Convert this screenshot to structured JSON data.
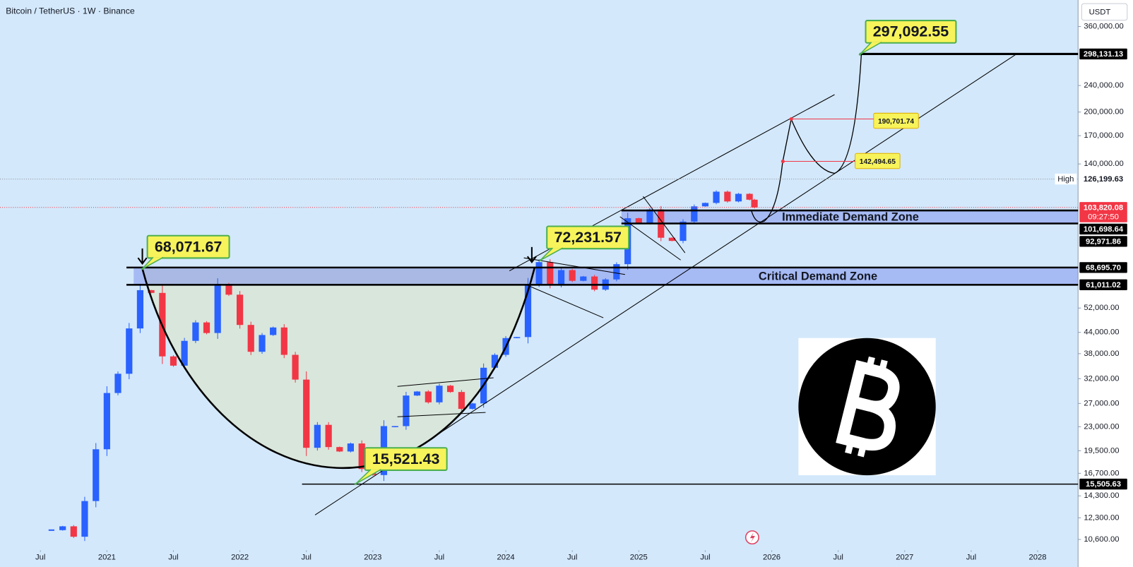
{
  "chart_data": {
    "type": "candlestick",
    "title": "Bitcoin / TetherUS · 1W · Binance",
    "currency": "USDT",
    "log": true,
    "grid": false,
    "xlim": [
      2020.196,
      2028.304
    ],
    "ylim": [
      9930,
      432000
    ],
    "xticks": [
      {
        "value": 2020.5,
        "label": "Jul"
      },
      2021,
      {
        "value": 2021.5,
        "label": "Jul"
      },
      2022,
      {
        "value": 2022.5,
        "label": "Jul"
      },
      2023,
      {
        "value": 2023.5,
        "label": "Jul"
      },
      2024,
      {
        "value": 2024.5,
        "label": "Jul"
      },
      2025,
      {
        "value": 2025.5,
        "label": "Jul"
      },
      2026,
      {
        "value": 2026.5,
        "label": "Jul"
      },
      2027,
      {
        "value": 2027.5,
        "label": "Jul"
      },
      2028
    ],
    "yticks": [
      {
        "value": 360000,
        "label": "360,000.00"
      },
      {
        "value": 240000,
        "label": "240,000.00"
      },
      {
        "value": 200000,
        "label": "200,000.00"
      },
      {
        "value": 170000,
        "label": "170,000.00"
      },
      {
        "value": 140000,
        "label": "140,000.00"
      },
      {
        "value": 52000,
        "label": "52,000.00"
      },
      {
        "value": 44000,
        "label": "44,000.00"
      },
      {
        "value": 38000,
        "label": "38,000.00"
      },
      {
        "value": 32000,
        "label": "32,000.00"
      },
      {
        "value": 27000,
        "label": "27,000.00"
      },
      {
        "value": 23000,
        "label": "23,000.00"
      },
      {
        "value": 19500,
        "label": "19,500.00"
      },
      {
        "value": 16700,
        "label": "16,700.00"
      },
      {
        "value": 14300,
        "label": "14,300.00"
      },
      {
        "value": 12300,
        "label": "12,300.00"
      },
      {
        "value": 10600,
        "label": "10,600.00"
      }
    ],
    "series": [
      {
        "name": "BTCUSDT",
        "up_color": "#2962ff",
        "down_color": "#f23645",
        "x": [
          2020.583,
          2020.667,
          2020.75,
          2020.833,
          2020.917,
          2021.0,
          2021.083,
          2021.167,
          2021.25,
          2021.333,
          2021.417,
          2021.5,
          2021.583,
          2021.667,
          2021.75,
          2021.833,
          2021.917,
          2022.0,
          2022.083,
          2022.167,
          2022.25,
          2022.333,
          2022.417,
          2022.5,
          2022.583,
          2022.667,
          2022.75,
          2022.833,
          2022.917,
          2023.0,
          2023.083,
          2023.167,
          2023.25,
          2023.333,
          2023.417,
          2023.5,
          2023.583,
          2023.667,
          2023.75,
          2023.833,
          2023.917,
          2024.0,
          2024.083,
          2024.167,
          2024.25,
          2024.333,
          2024.417,
          2024.5,
          2024.583,
          2024.667,
          2024.75,
          2024.833,
          2024.917,
          2025.0,
          2025.083,
          2025.167,
          2025.25,
          2025.333,
          2025.417,
          2025.5,
          2025.583,
          2025.667,
          2025.75,
          2025.833,
          2025.87
        ],
        "values": [
          11300,
          11600,
          10800,
          13800,
          19700,
          29000,
          33100,
          45200,
          58800,
          57700,
          37300,
          35000,
          41500,
          47100,
          43800,
          61300,
          57000,
          46300,
          38500,
          43200,
          45500,
          37700,
          31800,
          19900,
          23300,
          20000,
          19400,
          20500,
          17200,
          16500,
          23100,
          23100,
          28500,
          29300,
          27200,
          30500,
          29200,
          26000,
          27000,
          34500,
          37700,
          42300,
          42600,
          61200,
          71300,
          60700,
          67500,
          62700,
          64600,
          59000,
          63300,
          70300,
          96400,
          93400,
          102400,
          84300,
          82500,
          94200,
          104600,
          107100,
          115700,
          108200,
          114000,
          109500,
          103820.08
        ]
      }
    ],
    "levels": [
      {
        "value": 298131.13,
        "label": "298,131.13",
        "style": "solid"
      },
      {
        "value": 126199.63,
        "label": "126,199.63",
        "style": "dotted",
        "tag": "High"
      },
      {
        "value": 103820.08,
        "label": "103,820.08",
        "style": "dotted-red",
        "countdown": "09:27:50"
      },
      {
        "value": 15505.63,
        "label": "15,505.63",
        "style": "solid"
      }
    ],
    "zones": [
      {
        "label": "Immediate Demand Zone",
        "top": {
          "value": 101698.64,
          "label": "101,698.64"
        },
        "bottom": {
          "value": 92971.86,
          "label": "92,971.86"
        }
      },
      {
        "label": "Critical Demand Zone",
        "top": {
          "value": 68695.7,
          "label": "68,695.70"
        },
        "bottom": {
          "value": 61011.02,
          "label": "61,011.02"
        }
      }
    ],
    "annotations": [
      {
        "x": 2021.266,
        "value": 68071.67,
        "label": "68,071.67",
        "size": "large"
      },
      {
        "x": 2024.26,
        "value": 72231.57,
        "label": "72,231.57",
        "size": "large"
      },
      {
        "x": 2022.87,
        "value": 15521.43,
        "label": "15,521.43",
        "size": "large"
      },
      {
        "x": 2026.663,
        "value": 297092.55,
        "label": "297,092.55",
        "size": "large"
      },
      {
        "x": 2026.147,
        "value": 190701.74,
        "label": "190,701.74",
        "size": "small"
      },
      {
        "x": 2026.084,
        "value": 142494.65,
        "label": "142,494.65",
        "size": "small"
      }
    ]
  }
}
